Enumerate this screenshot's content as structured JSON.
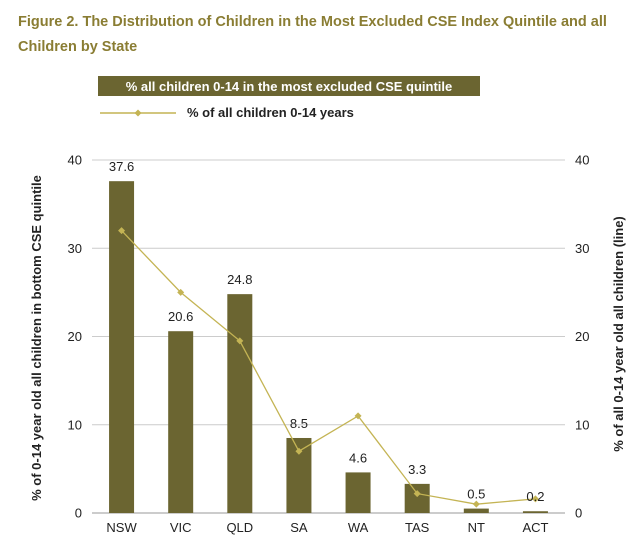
{
  "figure": {
    "title": "Figure 2. The Distribution of Children in the Most Excluded CSE Index Quintile and all Children by State"
  },
  "colors": {
    "bar": "#6b6531",
    "line": "#c4b454",
    "title": "#8a7d33",
    "grid": "#cccccc"
  },
  "chart_data": {
    "type": "bar",
    "categories": [
      "NSW",
      "VIC",
      "QLD",
      "SA",
      "WA",
      "TAS",
      "NT",
      "ACT"
    ],
    "series": [
      {
        "name": "% all children 0-14 in the most excluded CSE quintile",
        "type": "bar",
        "axis": "left",
        "values": [
          37.6,
          20.6,
          24.8,
          8.5,
          4.6,
          3.3,
          0.5,
          0.2
        ],
        "labels": [
          "37.6",
          "20.6",
          "24.8",
          "8.5",
          "4.6",
          "3.3",
          "0.5",
          "0.2"
        ]
      },
      {
        "name": "% of all children 0-14 years",
        "type": "line",
        "axis": "right",
        "marker": "diamond",
        "values": [
          32.0,
          25.0,
          19.5,
          7.0,
          11.0,
          2.2,
          1.0,
          1.6
        ]
      }
    ],
    "ylabel": "% of 0-14 year old all children in bottom CSE quintile",
    "y2label": "% of all 0-14 year old all children (line)",
    "ylim": [
      0,
      40
    ],
    "y2lim": [
      0,
      40
    ],
    "yticks": [
      "0",
      "10",
      "20",
      "30",
      "40"
    ],
    "y2ticks": [
      "0",
      "10",
      "20",
      "30",
      "40"
    ],
    "grid": true,
    "legend_position": "top-left"
  }
}
